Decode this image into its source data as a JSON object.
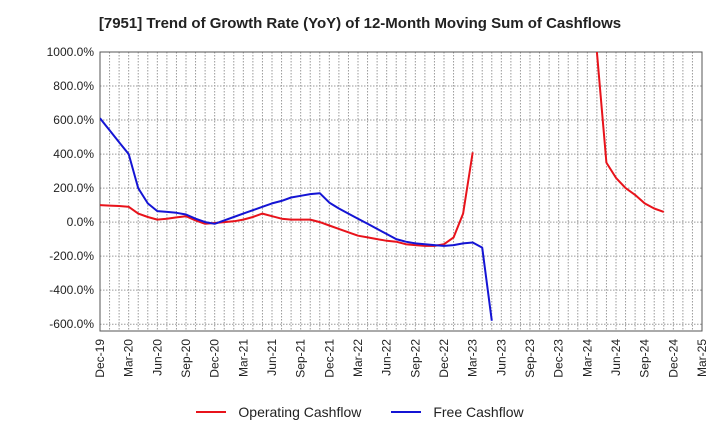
{
  "chart_data": {
    "type": "line",
    "title": "[7951]  Trend of Growth Rate (YoY) of 12-Month Moving Sum of Cashflows",
    "xlabel": "",
    "ylabel": "",
    "ylim": [
      -640,
      1000
    ],
    "y_ticks": [
      1000,
      800,
      600,
      400,
      200,
      0,
      -200,
      -400,
      -600
    ],
    "y_tick_labels": [
      "1000.0%",
      "800.0%",
      "600.0%",
      "400.0%",
      "200.0%",
      "0.0%",
      "-200.0%",
      "-400.0%",
      "-600.0%"
    ],
    "x_ticks": [
      "Dec-19",
      "Mar-20",
      "Jun-20",
      "Sep-20",
      "Dec-20",
      "Mar-21",
      "Jun-21",
      "Sep-21",
      "Dec-21",
      "Mar-22",
      "Jun-22",
      "Sep-22",
      "Dec-22",
      "Mar-23",
      "Jun-23",
      "Sep-23",
      "Dec-23",
      "Mar-24",
      "Jun-24",
      "Sep-24",
      "Dec-24",
      "Mar-25"
    ],
    "grid": true,
    "legend_position": "bottom",
    "series": [
      {
        "name": "Operating Cashflow",
        "color": "#e8131b",
        "values": [
          100,
          97,
          95,
          90,
          50,
          30,
          15,
          20,
          28,
          35,
          10,
          -10,
          -5,
          0,
          5,
          15,
          30,
          50,
          35,
          20,
          15,
          15,
          15,
          0,
          -20,
          -40,
          -60,
          -80,
          -90,
          -100,
          -110,
          -115,
          -130,
          -135,
          -140,
          -140,
          -130,
          -90,
          50,
          410,
          null,
          null,
          null,
          null,
          null,
          null,
          null,
          null,
          null,
          null,
          null,
          null,
          1000,
          350,
          260,
          200,
          160,
          110,
          80,
          60
        ]
      },
      {
        "name": "Free Cashflow",
        "color": "#1414d4",
        "values": [
          610,
          540,
          470,
          400,
          200,
          110,
          65,
          60,
          55,
          45,
          20,
          0,
          -10,
          10,
          30,
          50,
          70,
          90,
          110,
          125,
          145,
          155,
          165,
          170,
          115,
          80,
          50,
          20,
          -10,
          -40,
          -70,
          -100,
          -115,
          -125,
          -130,
          -135,
          -140,
          -135,
          -125,
          -120,
          -150,
          -580
        ]
      }
    ]
  }
}
